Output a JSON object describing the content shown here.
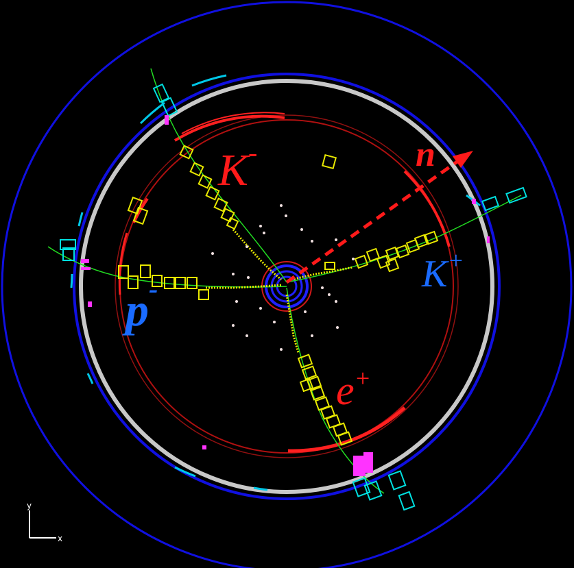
{
  "labels": {
    "k_minus": {
      "base": "K",
      "sup": "-",
      "color": "#ff1a1a"
    },
    "n": {
      "base": "n",
      "color": "#ff1a1a"
    },
    "k_plus": {
      "base": "K",
      "sup": "+",
      "color": "#1a6bff"
    },
    "p_minus": {
      "base": "p",
      "sup": "-",
      "color": "#1a6bff"
    },
    "e_plus": {
      "base": "e",
      "sup": "+",
      "color": "#ff1a1a"
    }
  },
  "axes": {
    "y": "y",
    "x": "x"
  },
  "colors": {
    "background": "#000000",
    "outer_ring": "#1010e0",
    "magnet_ring": "#c8c8c8",
    "drift_chamber": "#d01818",
    "track": "#22dd22",
    "hits": "#e8e800",
    "tof": "#00e0e0",
    "emc_hits": "#ff33ff",
    "neutron_arrow": "#ff1a1a"
  }
}
